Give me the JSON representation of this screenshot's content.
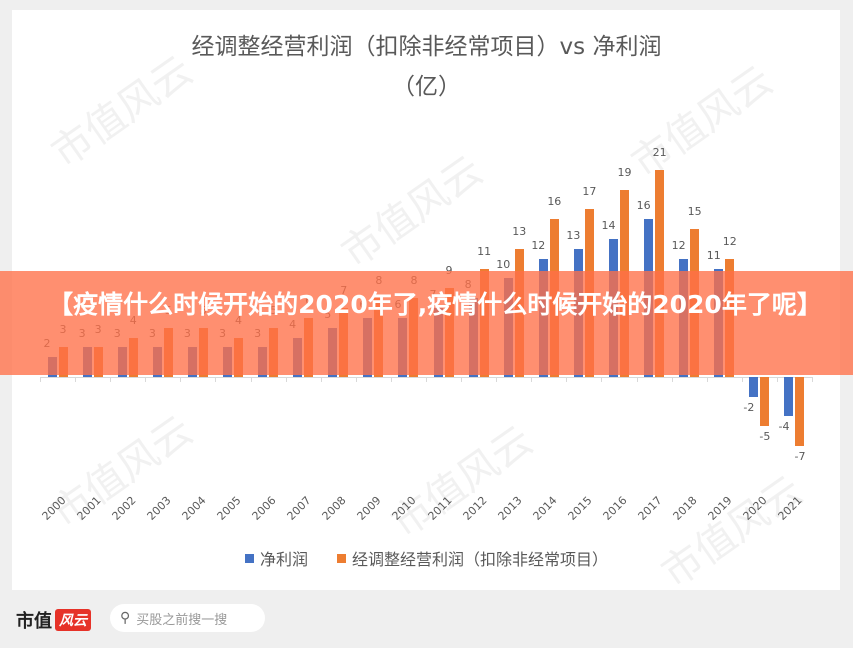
{
  "chart_data": {
    "type": "bar",
    "title": "经调整经营利润（扣除非经常项目）vs 净利润（亿）",
    "title_line1": "经调整经营利润（扣除非经常项目）vs 净利润",
    "title_line2": "（亿）",
    "categories": [
      "2000",
      "2001",
      "2002",
      "2003",
      "2004",
      "2005",
      "2006",
      "2007",
      "2008",
      "2009",
      "2010",
      "2011",
      "2012",
      "2013",
      "2014",
      "2015",
      "2016",
      "2017",
      "2018",
      "2019",
      "2020",
      "2021"
    ],
    "series": [
      {
        "name": "净利润",
        "color": "#4472c4",
        "values": [
          2,
          3,
          3,
          3,
          3,
          3,
          3,
          4,
          5,
          6,
          6,
          7,
          8,
          10,
          12,
          13,
          14,
          16,
          12,
          11,
          -2,
          -4
        ]
      },
      {
        "name": "经调整经营利润（扣除非经常项目）",
        "color": "#ed7d31",
        "values": [
          3,
          3,
          4,
          5,
          5,
          4,
          5,
          6,
          7,
          8,
          8,
          9,
          11,
          13,
          16,
          17,
          19,
          21,
          15,
          12,
          -5,
          -7
        ]
      }
    ],
    "xlabel": "",
    "ylabel": "",
    "ylim": [
      -7,
      21
    ],
    "grid": false,
    "legend_position": "bottom",
    "data_labels": true
  },
  "legend": {
    "item1": "净利润",
    "item2": "经调整经营利润（扣除非经常项目）"
  },
  "banner": {
    "text": "【疫情什么时候开始的2020年了,疫情什么时候开始的2020年了呢】"
  },
  "footer": {
    "logo_text": "市值",
    "logo_badge": "风云",
    "search_placeholder": "买股之前搜一搜",
    "search_icon": "search-icon"
  },
  "watermark": "市值风云",
  "colors": {
    "net_profit": "#4472c4",
    "adjusted_profit": "#ed7d31",
    "banner": "#ff7048"
  }
}
